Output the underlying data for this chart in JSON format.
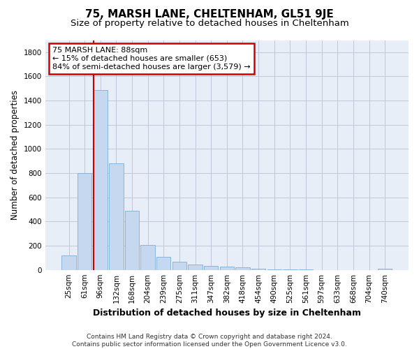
{
  "title": "75, MARSH LANE, CHELTENHAM, GL51 9JE",
  "subtitle": "Size of property relative to detached houses in Cheltenham",
  "xlabel": "Distribution of detached houses by size in Cheltenham",
  "ylabel": "Number of detached properties",
  "categories": [
    "25sqm",
    "61sqm",
    "96sqm",
    "132sqm",
    "168sqm",
    "204sqm",
    "239sqm",
    "275sqm",
    "311sqm",
    "347sqm",
    "382sqm",
    "418sqm",
    "454sqm",
    "490sqm",
    "525sqm",
    "561sqm",
    "597sqm",
    "633sqm",
    "668sqm",
    "704sqm",
    "740sqm"
  ],
  "values": [
    120,
    800,
    1490,
    880,
    490,
    205,
    105,
    65,
    42,
    35,
    28,
    22,
    8,
    4,
    3,
    2,
    1,
    1,
    0,
    0,
    8
  ],
  "bar_color": "#c5d8f0",
  "bar_edge_color": "#7aafd4",
  "vline_color": "#cc0000",
  "annotation_text": "75 MARSH LANE: 88sqm\n← 15% of detached houses are smaller (653)\n84% of semi-detached houses are larger (3,579) →",
  "annotation_box_color": "white",
  "annotation_box_edge_color": "#cc0000",
  "ylim": [
    0,
    1900
  ],
  "yticks": [
    0,
    200,
    400,
    600,
    800,
    1000,
    1200,
    1400,
    1600,
    1800
  ],
  "plot_bg_color": "#e8eef8",
  "grid_color": "#c0c8d8",
  "footer_text": "Contains HM Land Registry data © Crown copyright and database right 2024.\nContains public sector information licensed under the Open Government Licence v3.0.",
  "title_fontsize": 11,
  "subtitle_fontsize": 9.5,
  "xlabel_fontsize": 9,
  "ylabel_fontsize": 8.5,
  "tick_fontsize": 7.5,
  "annotation_fontsize": 8,
  "footer_fontsize": 6.5
}
